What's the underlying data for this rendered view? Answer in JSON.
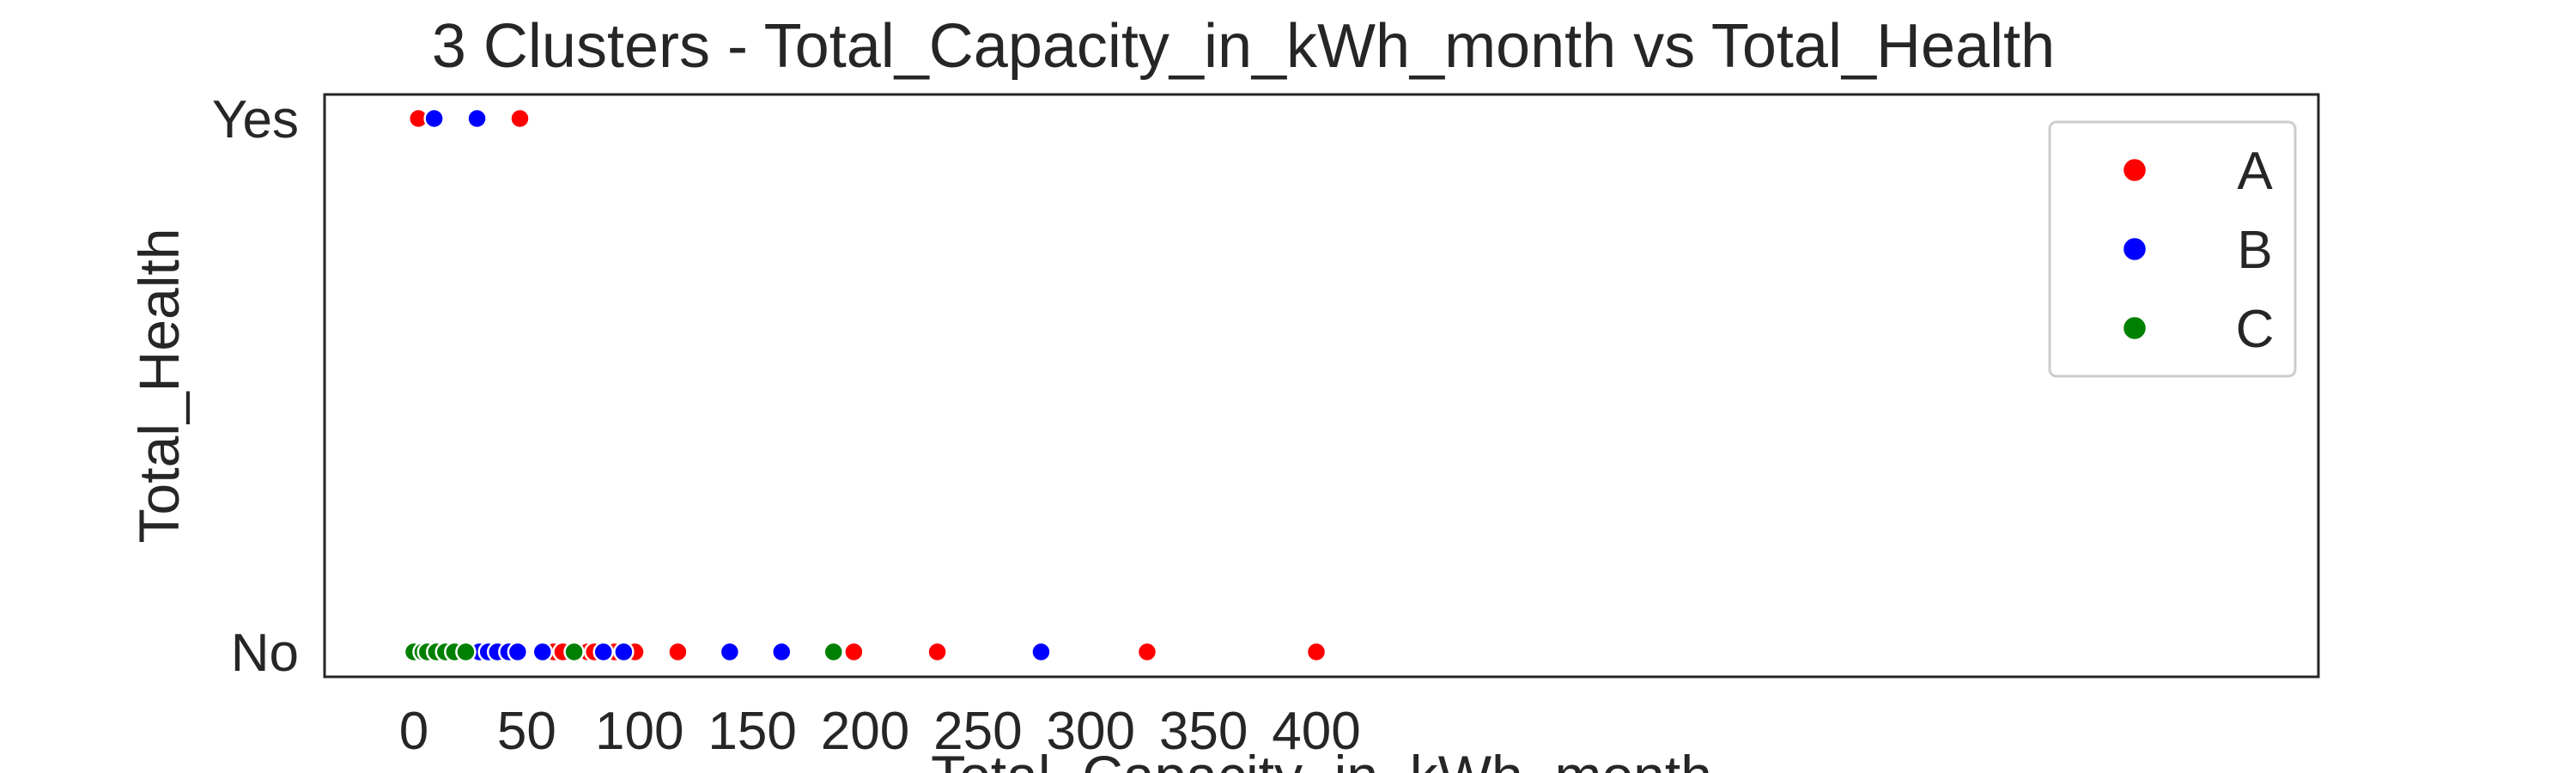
{
  "chart_data": {
    "type": "scatter",
    "title": "3 Clusters - Total_Capacity_in_kWh_month  vs Total_Health",
    "xlabel": "Total_Capacity_in_kWh_month",
    "ylabel": "Total_Health",
    "xlim": [
      -20,
      420
    ],
    "xticks": [
      0,
      50,
      100,
      150,
      200,
      250,
      300,
      350,
      400
    ],
    "y_categories": [
      "No",
      "Yes"
    ],
    "grid": false,
    "legend_position": "top-right",
    "series": [
      {
        "name": "A",
        "color": "#ff0000",
        "points": [
          [
            2,
            "Yes"
          ],
          [
            47,
            "Yes"
          ],
          [
            62,
            "No"
          ],
          [
            66,
            "No"
          ],
          [
            75,
            "No"
          ],
          [
            77,
            "No"
          ],
          [
            80,
            "No"
          ],
          [
            89,
            "No"
          ],
          [
            98,
            "No"
          ],
          [
            117,
            "No"
          ],
          [
            195,
            "No"
          ],
          [
            232,
            "No"
          ],
          [
            325,
            "No"
          ],
          [
            400,
            "No"
          ]
        ]
      },
      {
        "name": "B",
        "color": "#0000ff",
        "points": [
          [
            9,
            "Yes"
          ],
          [
            28,
            "Yes"
          ],
          [
            29,
            "No"
          ],
          [
            33,
            "No"
          ],
          [
            37,
            "No"
          ],
          [
            42,
            "No"
          ],
          [
            46,
            "No"
          ],
          [
            57,
            "No"
          ],
          [
            84,
            "No"
          ],
          [
            93,
            "No"
          ],
          [
            140,
            "No"
          ],
          [
            163,
            "No"
          ],
          [
            278,
            "No"
          ]
        ]
      },
      {
        "name": "C",
        "color": "#008000",
        "points": [
          [
            0,
            "No"
          ],
          [
            4,
            "No"
          ],
          [
            6,
            "No"
          ],
          [
            10,
            "No"
          ],
          [
            14,
            "No"
          ],
          [
            18,
            "No"
          ],
          [
            23,
            "No"
          ],
          [
            71,
            "No"
          ],
          [
            186,
            "No"
          ]
        ]
      }
    ]
  }
}
